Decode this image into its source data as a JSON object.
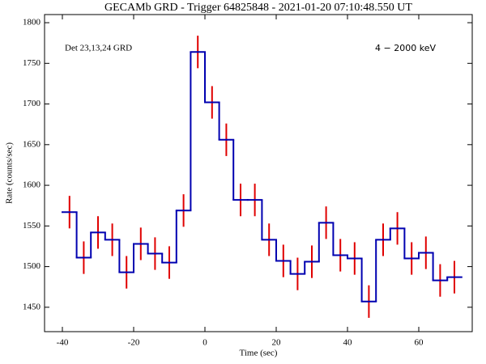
{
  "chart_data": {
    "type": "step-histogram",
    "title": "GECAMb GRD - Trigger 64825848 - 2021-01-20 07:10:48.550 UT",
    "x_label": "Time (sec)",
    "y_label": "Rate (counts/sec)",
    "annotations": [
      "Det 23,13,24 GRD",
      "4 − 2000 keV"
    ],
    "bins": [
      -40,
      -36,
      -32,
      -28,
      -24,
      -20,
      -16,
      -12,
      -8,
      -4,
      0,
      4,
      8,
      12,
      16,
      20,
      24,
      28,
      32,
      36,
      40,
      44,
      48,
      52,
      56,
      60,
      64,
      68,
      72
    ],
    "values": [
      1567,
      1511,
      1542,
      1533,
      1493,
      1528,
      1516,
      1505,
      1569,
      1764,
      1702,
      1656,
      1582,
      1582,
      1533,
      1507,
      1491,
      1506,
      1554,
      1514,
      1510,
      1457,
      1533,
      1547,
      1510,
      1517,
      1483,
      1487
    ],
    "errors": [
      20,
      20,
      20,
      20,
      20,
      20,
      20,
      20,
      20,
      20,
      20,
      20,
      20,
      20,
      20,
      20,
      20,
      20,
      20,
      20,
      20,
      20,
      20,
      20,
      20,
      20,
      20,
      20
    ],
    "line_color": "#0000b0",
    "error_color": "#e00000",
    "xlim": [
      -45,
      75
    ],
    "ylim": [
      1420,
      1810
    ],
    "xticks": [
      -40,
      -20,
      0,
      20,
      40,
      60
    ],
    "yticks": [
      1450,
      1500,
      1550,
      1600,
      1650,
      1700,
      1750,
      1800
    ]
  }
}
